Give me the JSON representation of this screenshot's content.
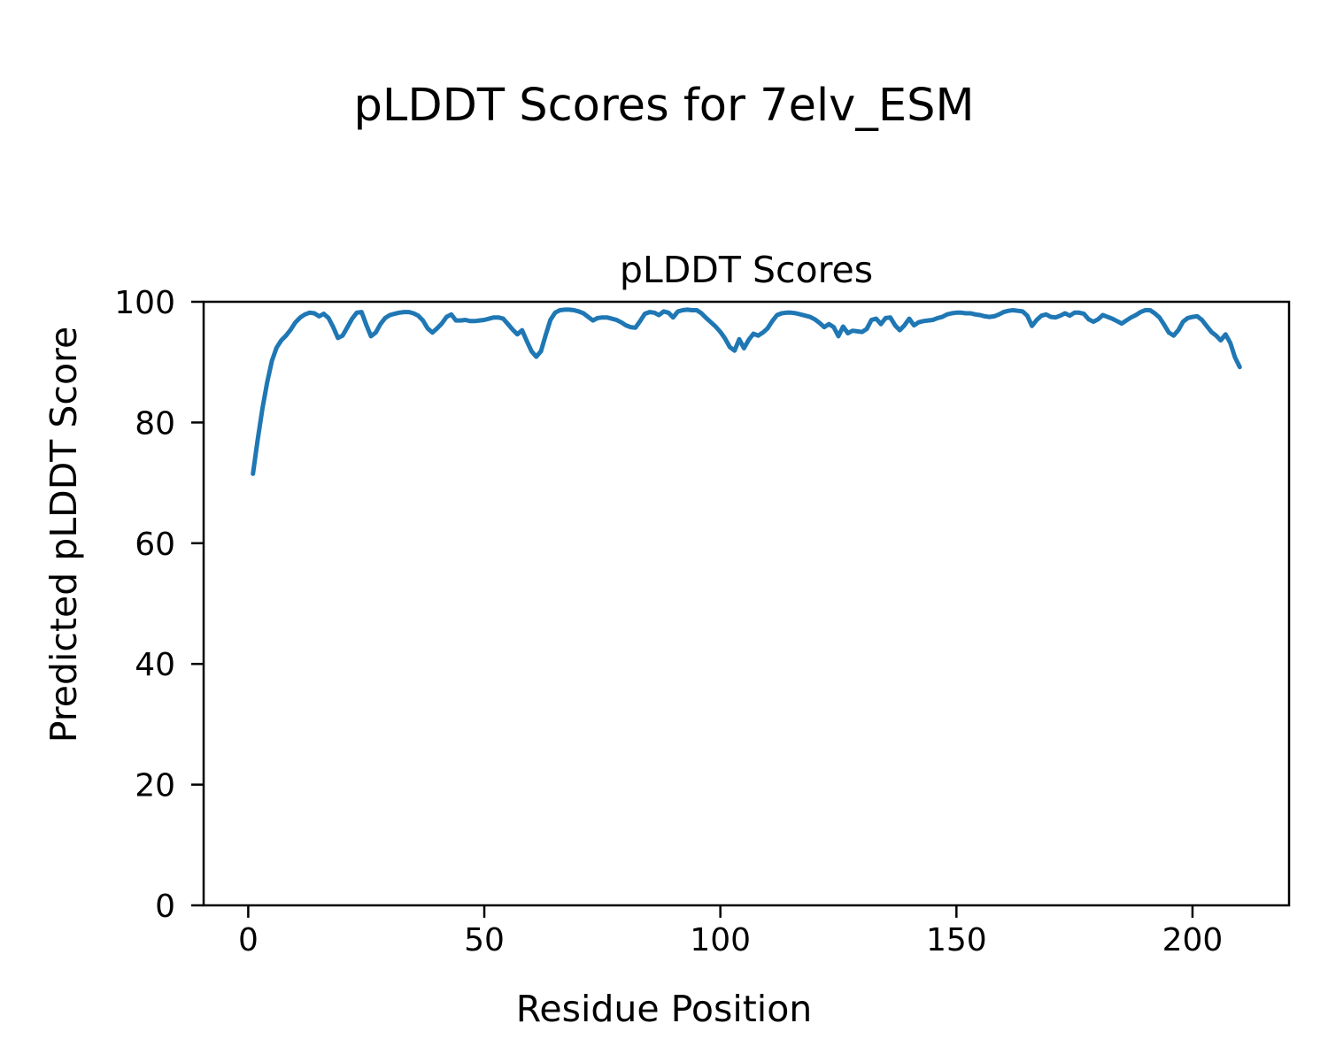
{
  "figure": {
    "suptitle": "pLDDT Scores for 7elv_ESM"
  },
  "chart_data": {
    "type": "line",
    "title": "pLDDT Scores",
    "xlabel": "Residue Position",
    "ylabel": "Predicted pLDDT Score",
    "x_ticks": [
      0,
      50,
      100,
      150,
      200
    ],
    "y_ticks": [
      0,
      20,
      40,
      60,
      80,
      100
    ],
    "xlim": [
      -9.45,
      220.45
    ],
    "ylim": [
      0,
      100
    ],
    "grid": false,
    "legend": false,
    "line_color": "#1f77b4",
    "line_width": 5,
    "spine_color": "#000000",
    "series": [
      {
        "name": "pLDDT",
        "x_start": 1,
        "x_step": 1,
        "values": [
          71.5,
          77.2,
          82.3,
          86.6,
          90.2,
          92.4,
          93.6,
          94.4,
          95.4,
          96.6,
          97.4,
          97.9,
          98.2,
          98.1,
          97.6,
          98.0,
          97.3,
          95.8,
          94.0,
          94.4,
          95.8,
          97.2,
          98.2,
          98.3,
          96.2,
          94.3,
          94.9,
          96.3,
          97.3,
          97.8,
          98.0,
          98.2,
          98.3,
          98.3,
          98.1,
          97.7,
          96.9,
          95.6,
          94.9,
          95.6,
          96.4,
          97.5,
          97.9,
          96.9,
          96.9,
          97.0,
          96.8,
          96.8,
          96.9,
          97.0,
          97.2,
          97.4,
          97.4,
          97.2,
          96.3,
          95.4,
          94.6,
          95.3,
          93.5,
          91.8,
          90.9,
          91.8,
          94.5,
          97.0,
          98.2,
          98.6,
          98.7,
          98.7,
          98.6,
          98.4,
          98.1,
          97.5,
          96.9,
          97.3,
          97.4,
          97.4,
          97.2,
          97.0,
          96.6,
          96.1,
          95.8,
          95.7,
          96.8,
          98.0,
          98.3,
          98.2,
          97.8,
          98.4,
          98.2,
          97.4,
          98.4,
          98.6,
          98.7,
          98.6,
          98.6,
          98.1,
          97.3,
          96.6,
          95.9,
          95.0,
          93.9,
          92.5,
          91.9,
          93.8,
          92.3,
          93.7,
          94.7,
          94.4,
          94.9,
          95.6,
          96.8,
          97.8,
          98.1,
          98.2,
          98.2,
          98.1,
          97.9,
          97.7,
          97.5,
          97.1,
          96.5,
          95.8,
          96.3,
          95.8,
          94.3,
          95.9,
          94.8,
          95.2,
          95.1,
          95.0,
          95.5,
          97.0,
          97.2,
          96.3,
          97.3,
          97.4,
          96.1,
          95.3,
          96.1,
          97.2,
          96.1,
          96.6,
          96.8,
          96.9,
          97.0,
          97.3,
          97.5,
          97.9,
          98.1,
          98.2,
          98.2,
          98.1,
          98.1,
          97.9,
          97.8,
          97.6,
          97.5,
          97.6,
          97.9,
          98.3,
          98.5,
          98.6,
          98.5,
          98.4,
          97.7,
          96.0,
          97.0,
          97.7,
          97.9,
          97.5,
          97.4,
          97.7,
          98.1,
          97.7,
          98.2,
          98.2,
          98.0,
          97.1,
          96.7,
          97.1,
          97.8,
          97.5,
          97.2,
          96.8,
          96.4,
          96.9,
          97.4,
          97.8,
          98.3,
          98.6,
          98.6,
          98.1,
          97.4,
          96.2,
          94.9,
          94.4,
          95.3,
          96.7,
          97.3,
          97.5,
          97.6,
          97.0,
          96.0,
          95.0,
          94.4,
          93.6,
          94.6,
          93.2,
          90.8,
          89.2
        ]
      }
    ]
  }
}
